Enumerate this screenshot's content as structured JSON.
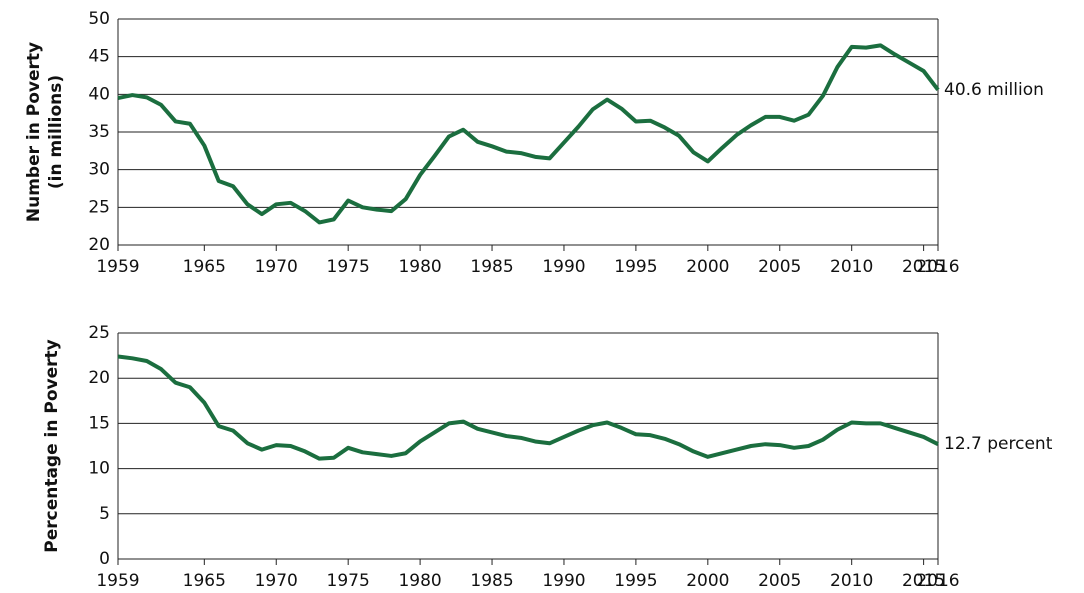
{
  "chart_data": [
    {
      "type": "line",
      "ylabel": [
        "Number in Poverty",
        "(in millions)"
      ],
      "color": "#1b6e3f",
      "x": [
        1959,
        1960,
        1961,
        1962,
        1963,
        1964,
        1965,
        1966,
        1967,
        1968,
        1969,
        1970,
        1971,
        1972,
        1973,
        1974,
        1975,
        1976,
        1977,
        1978,
        1979,
        1980,
        1981,
        1982,
        1983,
        1984,
        1985,
        1986,
        1987,
        1988,
        1989,
        1990,
        1991,
        1992,
        1993,
        1994,
        1995,
        1996,
        1997,
        1998,
        1999,
        2000,
        2001,
        2002,
        2003,
        2004,
        2005,
        2006,
        2007,
        2008,
        2009,
        2010,
        2011,
        2012,
        2013,
        2014,
        2015,
        2016
      ],
      "values": [
        39.5,
        39.9,
        39.6,
        38.6,
        36.4,
        36.1,
        33.2,
        28.5,
        27.8,
        25.4,
        24.1,
        25.4,
        25.6,
        24.5,
        23.0,
        23.4,
        25.9,
        25.0,
        24.7,
        24.5,
        26.1,
        29.3,
        31.8,
        34.4,
        35.3,
        33.7,
        33.1,
        32.4,
        32.2,
        31.7,
        31.5,
        33.6,
        35.7,
        38.0,
        39.3,
        38.1,
        36.4,
        36.5,
        35.6,
        34.5,
        32.3,
        31.1,
        32.9,
        34.6,
        35.9,
        37.0,
        37.0,
        36.5,
        37.3,
        39.8,
        43.6,
        46.3,
        46.2,
        46.5,
        45.3,
        44.2,
        43.1,
        40.6
      ],
      "end_label": "40.6 million",
      "xlim": [
        1959,
        2016
      ],
      "xticks": [
        1959,
        1965,
        1970,
        1975,
        1980,
        1985,
        1990,
        1995,
        2000,
        2005,
        2010,
        2015,
        2016
      ],
      "ylim": [
        20,
        50
      ],
      "yticks": [
        20,
        25,
        30,
        35,
        40,
        45,
        50
      ],
      "grid": true
    },
    {
      "type": "line",
      "ylabel": [
        "Percentage in Poverty"
      ],
      "color": "#1b6e3f",
      "x": [
        1959,
        1960,
        1961,
        1962,
        1963,
        1964,
        1965,
        1966,
        1967,
        1968,
        1969,
        1970,
        1971,
        1972,
        1973,
        1974,
        1975,
        1976,
        1977,
        1978,
        1979,
        1980,
        1981,
        1982,
        1983,
        1984,
        1985,
        1986,
        1987,
        1988,
        1989,
        1990,
        1991,
        1992,
        1993,
        1994,
        1995,
        1996,
        1997,
        1998,
        1999,
        2000,
        2001,
        2002,
        2003,
        2004,
        2005,
        2006,
        2007,
        2008,
        2009,
        2010,
        2011,
        2012,
        2013,
        2014,
        2015,
        2016
      ],
      "values": [
        22.4,
        22.2,
        21.9,
        21.0,
        19.5,
        19.0,
        17.3,
        14.7,
        14.2,
        12.8,
        12.1,
        12.6,
        12.5,
        11.9,
        11.1,
        11.2,
        12.3,
        11.8,
        11.6,
        11.4,
        11.7,
        13.0,
        14.0,
        15.0,
        15.2,
        14.4,
        14.0,
        13.6,
        13.4,
        13.0,
        12.8,
        13.5,
        14.2,
        14.8,
        15.1,
        14.5,
        13.8,
        13.7,
        13.3,
        12.7,
        11.9,
        11.3,
        11.7,
        12.1,
        12.5,
        12.7,
        12.6,
        12.3,
        12.5,
        13.2,
        14.3,
        15.1,
        15.0,
        15.0,
        14.5,
        14.0,
        13.5,
        12.7
      ],
      "end_label": "12.7 percent",
      "xlim": [
        1959,
        2016
      ],
      "xticks": [
        1959,
        1965,
        1970,
        1975,
        1980,
        1985,
        1990,
        1995,
        2000,
        2005,
        2010,
        2015,
        2016
      ],
      "ylim": [
        0,
        25
      ],
      "yticks": [
        0,
        5,
        10,
        15,
        20,
        25
      ],
      "grid": true
    }
  ]
}
